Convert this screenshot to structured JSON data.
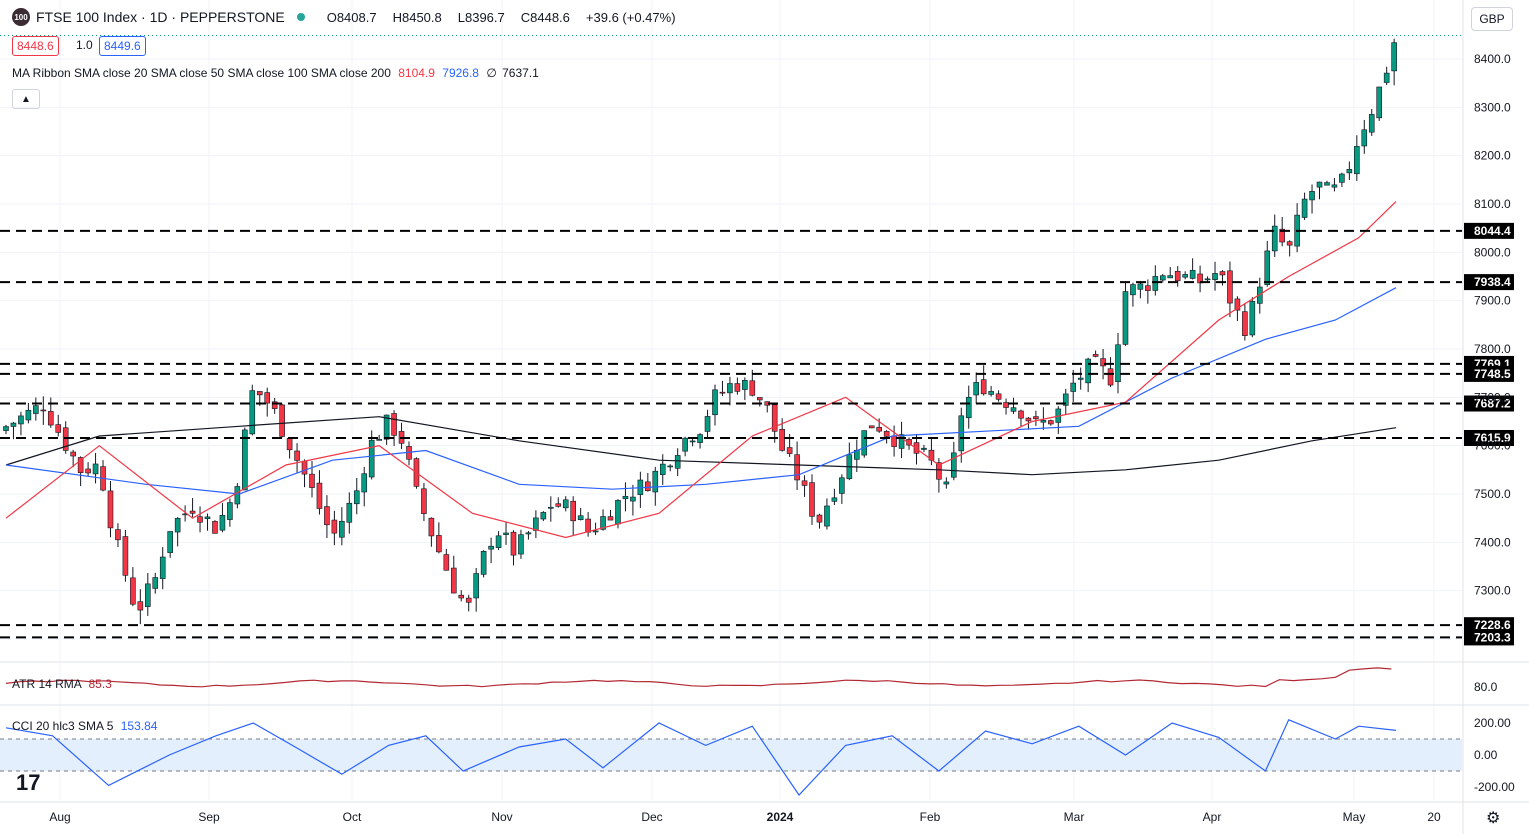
{
  "header": {
    "logo_text": "100",
    "title": "FTSE 100 Index · 1D · PEPPERSTONE",
    "open": "O8408.7",
    "high": "H8450.8",
    "low": "L8396.7",
    "close": "C8448.6",
    "change": "+39.6 (+0.47%)",
    "bid": "8448.6",
    "spread": "1.0",
    "ask": "8449.6"
  },
  "currency": "GBP",
  "collapse_icon": "chevron-up-icon",
  "settings_icon": "gear-icon",
  "brand_mark": "tradingview-logo",
  "ma_ribbon": {
    "label": "MA Ribbon SMA close 20 SMA close 50 SMA close 100 SMA close 200",
    "v20": "8104.9",
    "v50": "7926.8",
    "v100": "∅",
    "v200": "7637.1"
  },
  "atr": {
    "label": "ATR 14 RMA",
    "value": "85.3"
  },
  "cci": {
    "label": "CCI 20 hlc3 SMA 5",
    "value": "153.84"
  },
  "colors": {
    "up": "#089981",
    "down": "#f23645",
    "sma20": "#f23645",
    "sma50": "#2962ff",
    "sma200": "#131722",
    "atr": "#b22833",
    "cci": "#2962ff",
    "cci_band": "#e3effd"
  },
  "chart_data": {
    "type": "candlestick",
    "main_axis": {
      "ylim": [
        7160,
        8490
      ],
      "ticks": [
        "7200.0",
        "7300.0",
        "7400.0",
        "7500.0",
        "7600.0",
        "7700.0",
        "7800.0",
        "7900.0",
        "8000.0",
        "8100.0",
        "8200.0",
        "8300.0",
        "8400.0"
      ]
    },
    "x_labels": [
      "Aug",
      "Sep",
      "Oct",
      "Nov",
      "Dec",
      "2024",
      "Feb",
      "Mar",
      "Apr",
      "May",
      "20"
    ],
    "levels": [
      "8044.4",
      "7938.4",
      "7769.1",
      "7748.5",
      "7687.2",
      "7615.9",
      "7228.6",
      "7203.3"
    ],
    "last_price": "8448.6",
    "close_path": [
      {
        "d": 0,
        "c": 7640
      },
      {
        "d": 8,
        "c": 7685
      },
      {
        "d": 13,
        "c": 7600
      },
      {
        "d": 16,
        "c": 7550
      },
      {
        "d": 20,
        "c": 7560
      },
      {
        "d": 23,
        "c": 7420
      },
      {
        "d": 28,
        "c": 7255
      },
      {
        "d": 32,
        "c": 7325
      },
      {
        "d": 35,
        "c": 7430
      },
      {
        "d": 40,
        "c": 7475
      },
      {
        "d": 45,
        "c": 7430
      },
      {
        "d": 49,
        "c": 7500
      },
      {
        "d": 53,
        "c": 7720
      },
      {
        "d": 57,
        "c": 7680
      },
      {
        "d": 61,
        "c": 7600
      },
      {
        "d": 65,
        "c": 7520
      },
      {
        "d": 70,
        "c": 7410
      },
      {
        "d": 75,
        "c": 7500
      },
      {
        "d": 78,
        "c": 7600
      },
      {
        "d": 82,
        "c": 7650
      },
      {
        "d": 85,
        "c": 7610
      },
      {
        "d": 88,
        "c": 7500
      },
      {
        "d": 92,
        "c": 7400
      },
      {
        "d": 96,
        "c": 7310
      },
      {
        "d": 99,
        "c": 7260
      },
      {
        "d": 102,
        "c": 7360
      },
      {
        "d": 105,
        "c": 7430
      },
      {
        "d": 109,
        "c": 7380
      },
      {
        "d": 113,
        "c": 7430
      },
      {
        "d": 117,
        "c": 7480
      },
      {
        "d": 121,
        "c": 7470
      },
      {
        "d": 125,
        "c": 7420
      },
      {
        "d": 129,
        "c": 7460
      },
      {
        "d": 133,
        "c": 7500
      },
      {
        "d": 137,
        "c": 7520
      },
      {
        "d": 141,
        "c": 7560
      },
      {
        "d": 145,
        "c": 7610
      },
      {
        "d": 149,
        "c": 7640
      },
      {
        "d": 152,
        "c": 7700
      },
      {
        "d": 156,
        "c": 7730
      },
      {
        "d": 160,
        "c": 7720
      },
      {
        "d": 163,
        "c": 7680
      },
      {
        "d": 166,
        "c": 7600
      },
      {
        "d": 170,
        "c": 7530
      },
      {
        "d": 174,
        "c": 7440
      },
      {
        "d": 178,
        "c": 7520
      },
      {
        "d": 182,
        "c": 7600
      },
      {
        "d": 186,
        "c": 7650
      },
      {
        "d": 190,
        "c": 7620
      },
      {
        "d": 194,
        "c": 7590
      },
      {
        "d": 198,
        "c": 7570
      },
      {
        "d": 202,
        "c": 7500
      },
      {
        "d": 205,
        "c": 7680
      },
      {
        "d": 209,
        "c": 7730
      },
      {
        "d": 213,
        "c": 7700
      },
      {
        "d": 217,
        "c": 7680
      },
      {
        "d": 221,
        "c": 7640
      },
      {
        "d": 225,
        "c": 7660
      },
      {
        "d": 229,
        "c": 7730
      },
      {
        "d": 233,
        "c": 7770
      },
      {
        "d": 237,
        "c": 7740
      },
      {
        "d": 240,
        "c": 7920
      },
      {
        "d": 244,
        "c": 7930
      },
      {
        "d": 248,
        "c": 7960
      },
      {
        "d": 252,
        "c": 7950
      },
      {
        "d": 256,
        "c": 7940
      },
      {
        "d": 260,
        "c": 7960
      },
      {
        "d": 263,
        "c": 7890
      },
      {
        "d": 266,
        "c": 7840
      },
      {
        "d": 269,
        "c": 7950
      },
      {
        "d": 272,
        "c": 8040
      },
      {
        "d": 275,
        "c": 8000
      },
      {
        "d": 278,
        "c": 8100
      },
      {
        "d": 281,
        "c": 8140
      },
      {
        "d": 284,
        "c": 8120
      },
      {
        "d": 287,
        "c": 8150
      },
      {
        "d": 290,
        "c": 8240
      },
      {
        "d": 293,
        "c": 8300
      },
      {
        "d": 296,
        "c": 8380
      },
      {
        "d": 298,
        "c": 8448.6
      }
    ],
    "sma20_path": [
      [
        0,
        7450
      ],
      [
        20,
        7600
      ],
      [
        40,
        7450
      ],
      [
        60,
        7560
      ],
      [
        80,
        7600
      ],
      [
        100,
        7460
      ],
      [
        120,
        7410
      ],
      [
        140,
        7460
      ],
      [
        160,
        7620
      ],
      [
        180,
        7700
      ],
      [
        200,
        7560
      ],
      [
        220,
        7650
      ],
      [
        240,
        7690
      ],
      [
        260,
        7860
      ],
      [
        275,
        7950
      ],
      [
        290,
        8030
      ],
      [
        298,
        8104.9
      ]
    ],
    "sma50_path": [
      [
        0,
        7560
      ],
      [
        30,
        7520
      ],
      [
        50,
        7500
      ],
      [
        70,
        7570
      ],
      [
        90,
        7590
      ],
      [
        110,
        7520
      ],
      [
        130,
        7510
      ],
      [
        150,
        7520
      ],
      [
        170,
        7540
      ],
      [
        190,
        7620
      ],
      [
        210,
        7630
      ],
      [
        230,
        7640
      ],
      [
        250,
        7740
      ],
      [
        270,
        7820
      ],
      [
        285,
        7860
      ],
      [
        298,
        7926.8
      ]
    ],
    "sma200_path": [
      [
        0,
        7560
      ],
      [
        20,
        7620
      ],
      [
        50,
        7640
      ],
      [
        80,
        7660
      ],
      [
        110,
        7610
      ],
      [
        140,
        7570
      ],
      [
        170,
        7560
      ],
      [
        200,
        7550
      ],
      [
        220,
        7540
      ],
      [
        240,
        7550
      ],
      [
        260,
        7570
      ],
      [
        280,
        7610
      ],
      [
        298,
        7637.1
      ]
    ],
    "atr_axis": {
      "ticks": [
        "80.0"
      ]
    },
    "cci_axis": {
      "ticks": [
        "200.00",
        "0.00",
        "-200.00"
      ],
      "band": [
        -100,
        100
      ]
    },
    "cci_path": [
      [
        0,
        170
      ],
      [
        10,
        120
      ],
      [
        22,
        -190
      ],
      [
        35,
        0
      ],
      [
        45,
        120
      ],
      [
        53,
        200
      ],
      [
        62,
        50
      ],
      [
        72,
        -120
      ],
      [
        82,
        60
      ],
      [
        90,
        120
      ],
      [
        98,
        -100
      ],
      [
        110,
        50
      ],
      [
        120,
        100
      ],
      [
        128,
        -80
      ],
      [
        140,
        200
      ],
      [
        150,
        60
      ],
      [
        160,
        180
      ],
      [
        170,
        -250
      ],
      [
        180,
        60
      ],
      [
        190,
        120
      ],
      [
        200,
        -100
      ],
      [
        210,
        150
      ],
      [
        220,
        70
      ],
      [
        230,
        180
      ],
      [
        240,
        0
      ],
      [
        250,
        200
      ],
      [
        260,
        110
      ],
      [
        270,
        -100
      ],
      [
        275,
        220
      ],
      [
        285,
        100
      ],
      [
        290,
        180
      ],
      [
        298,
        154
      ]
    ]
  }
}
